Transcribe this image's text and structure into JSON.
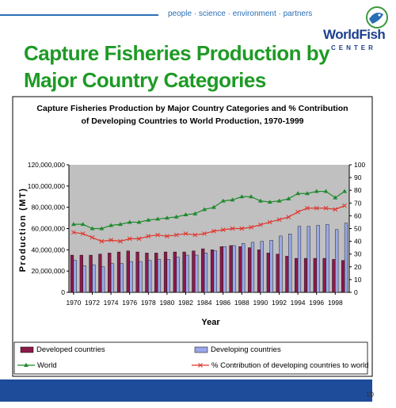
{
  "header": {
    "tagline": "people · science · environment · partners",
    "logo_line1": "WorldFish",
    "logo_line2": "CENTER"
  },
  "slide": {
    "title_line1": "Capture Fisheries Production by",
    "title_line2": "Major Country Categories",
    "page_number": "10"
  },
  "colors": {
    "slide_title": "#1e9a25",
    "plot_bg": "#c0c0c0",
    "developed_bar": "#8b1a4a",
    "developing_bar": "#9aa8ea",
    "world_line": "#1f8a2e",
    "pct_line": "#e0342a",
    "band": "#1e4b9a"
  },
  "chart_data": {
    "type": "bar",
    "title_line1": "Capture Fisheries Production by Major Country Categories and % Contribution",
    "title_line2": "of Developing Countries to World Production, 1970-1999",
    "xlabel": "Year",
    "ylabel": "Production (MT)",
    "ylim": [
      0,
      120000000
    ],
    "y2lim": [
      0,
      100
    ],
    "yticks": [
      "0",
      "20,000,000",
      "40,000,000",
      "60,000,000",
      "80,000,000",
      "100,000,000",
      "120,000,000"
    ],
    "y2ticks": [
      "0",
      "10",
      "20",
      "30",
      "40",
      "50",
      "60",
      "70",
      "80",
      "90",
      "100"
    ],
    "x_tick_labels": [
      "1970",
      "1972",
      "1974",
      "1976",
      "1978",
      "1980",
      "1982",
      "1984",
      "1986",
      "1988",
      "1990",
      "1992",
      "1994",
      "1996",
      "1998"
    ],
    "years": [
      1970,
      1971,
      1972,
      1973,
      1974,
      1975,
      1976,
      1977,
      1978,
      1979,
      1980,
      1981,
      1982,
      1983,
      1984,
      1985,
      1986,
      1987,
      1988,
      1989,
      1990,
      1991,
      1992,
      1993,
      1994,
      1995,
      1996,
      1997,
      1998,
      1999
    ],
    "grid": false,
    "legend_position": "bottom",
    "series": [
      {
        "name": "Developed countries",
        "type": "bar",
        "axis": "left",
        "values": [
          35000000,
          35000000,
          35000000,
          36000000,
          37000000,
          38000000,
          39000000,
          38000000,
          37000000,
          37000000,
          38000000,
          38000000,
          38000000,
          39000000,
          41000000,
          40000000,
          43000000,
          44000000,
          43000000,
          42000000,
          40000000,
          37000000,
          36000000,
          34000000,
          32000000,
          32000000,
          32000000,
          32000000,
          31000000,
          30000000
        ]
      },
      {
        "name": "Developing countries",
        "type": "bar",
        "axis": "left",
        "values": [
          30000000,
          25000000,
          26000000,
          24000000,
          27000000,
          27000000,
          29000000,
          29000000,
          30000000,
          31000000,
          31000000,
          33000000,
          35000000,
          35000000,
          37000000,
          39000000,
          43000000,
          44000000,
          46000000,
          47000000,
          48000000,
          49000000,
          53000000,
          55000000,
          62000000,
          62000000,
          63000000,
          64000000,
          59000000,
          65000000
        ]
      },
      {
        "name": "World",
        "type": "line",
        "axis": "left",
        "values": [
          64000000,
          64000000,
          60000000,
          60000000,
          63000000,
          64000000,
          66000000,
          66000000,
          68000000,
          69000000,
          70000000,
          71000000,
          73000000,
          74000000,
          78000000,
          80000000,
          86000000,
          87000000,
          90000000,
          90000000,
          86000000,
          85000000,
          86000000,
          88000000,
          93000000,
          93000000,
          95000000,
          95000000,
          89000000,
          95000000
        ]
      },
      {
        "name": "% Contribution of developing countries to world",
        "type": "line",
        "axis": "right",
        "values": [
          47,
          46,
          43,
          40,
          41,
          40,
          42,
          42,
          44,
          45,
          44,
          45,
          46,
          45,
          46,
          48,
          49,
          50,
          50,
          51,
          53,
          55,
          57,
          59,
          63,
          66,
          66,
          66,
          65,
          68
        ]
      }
    ]
  }
}
